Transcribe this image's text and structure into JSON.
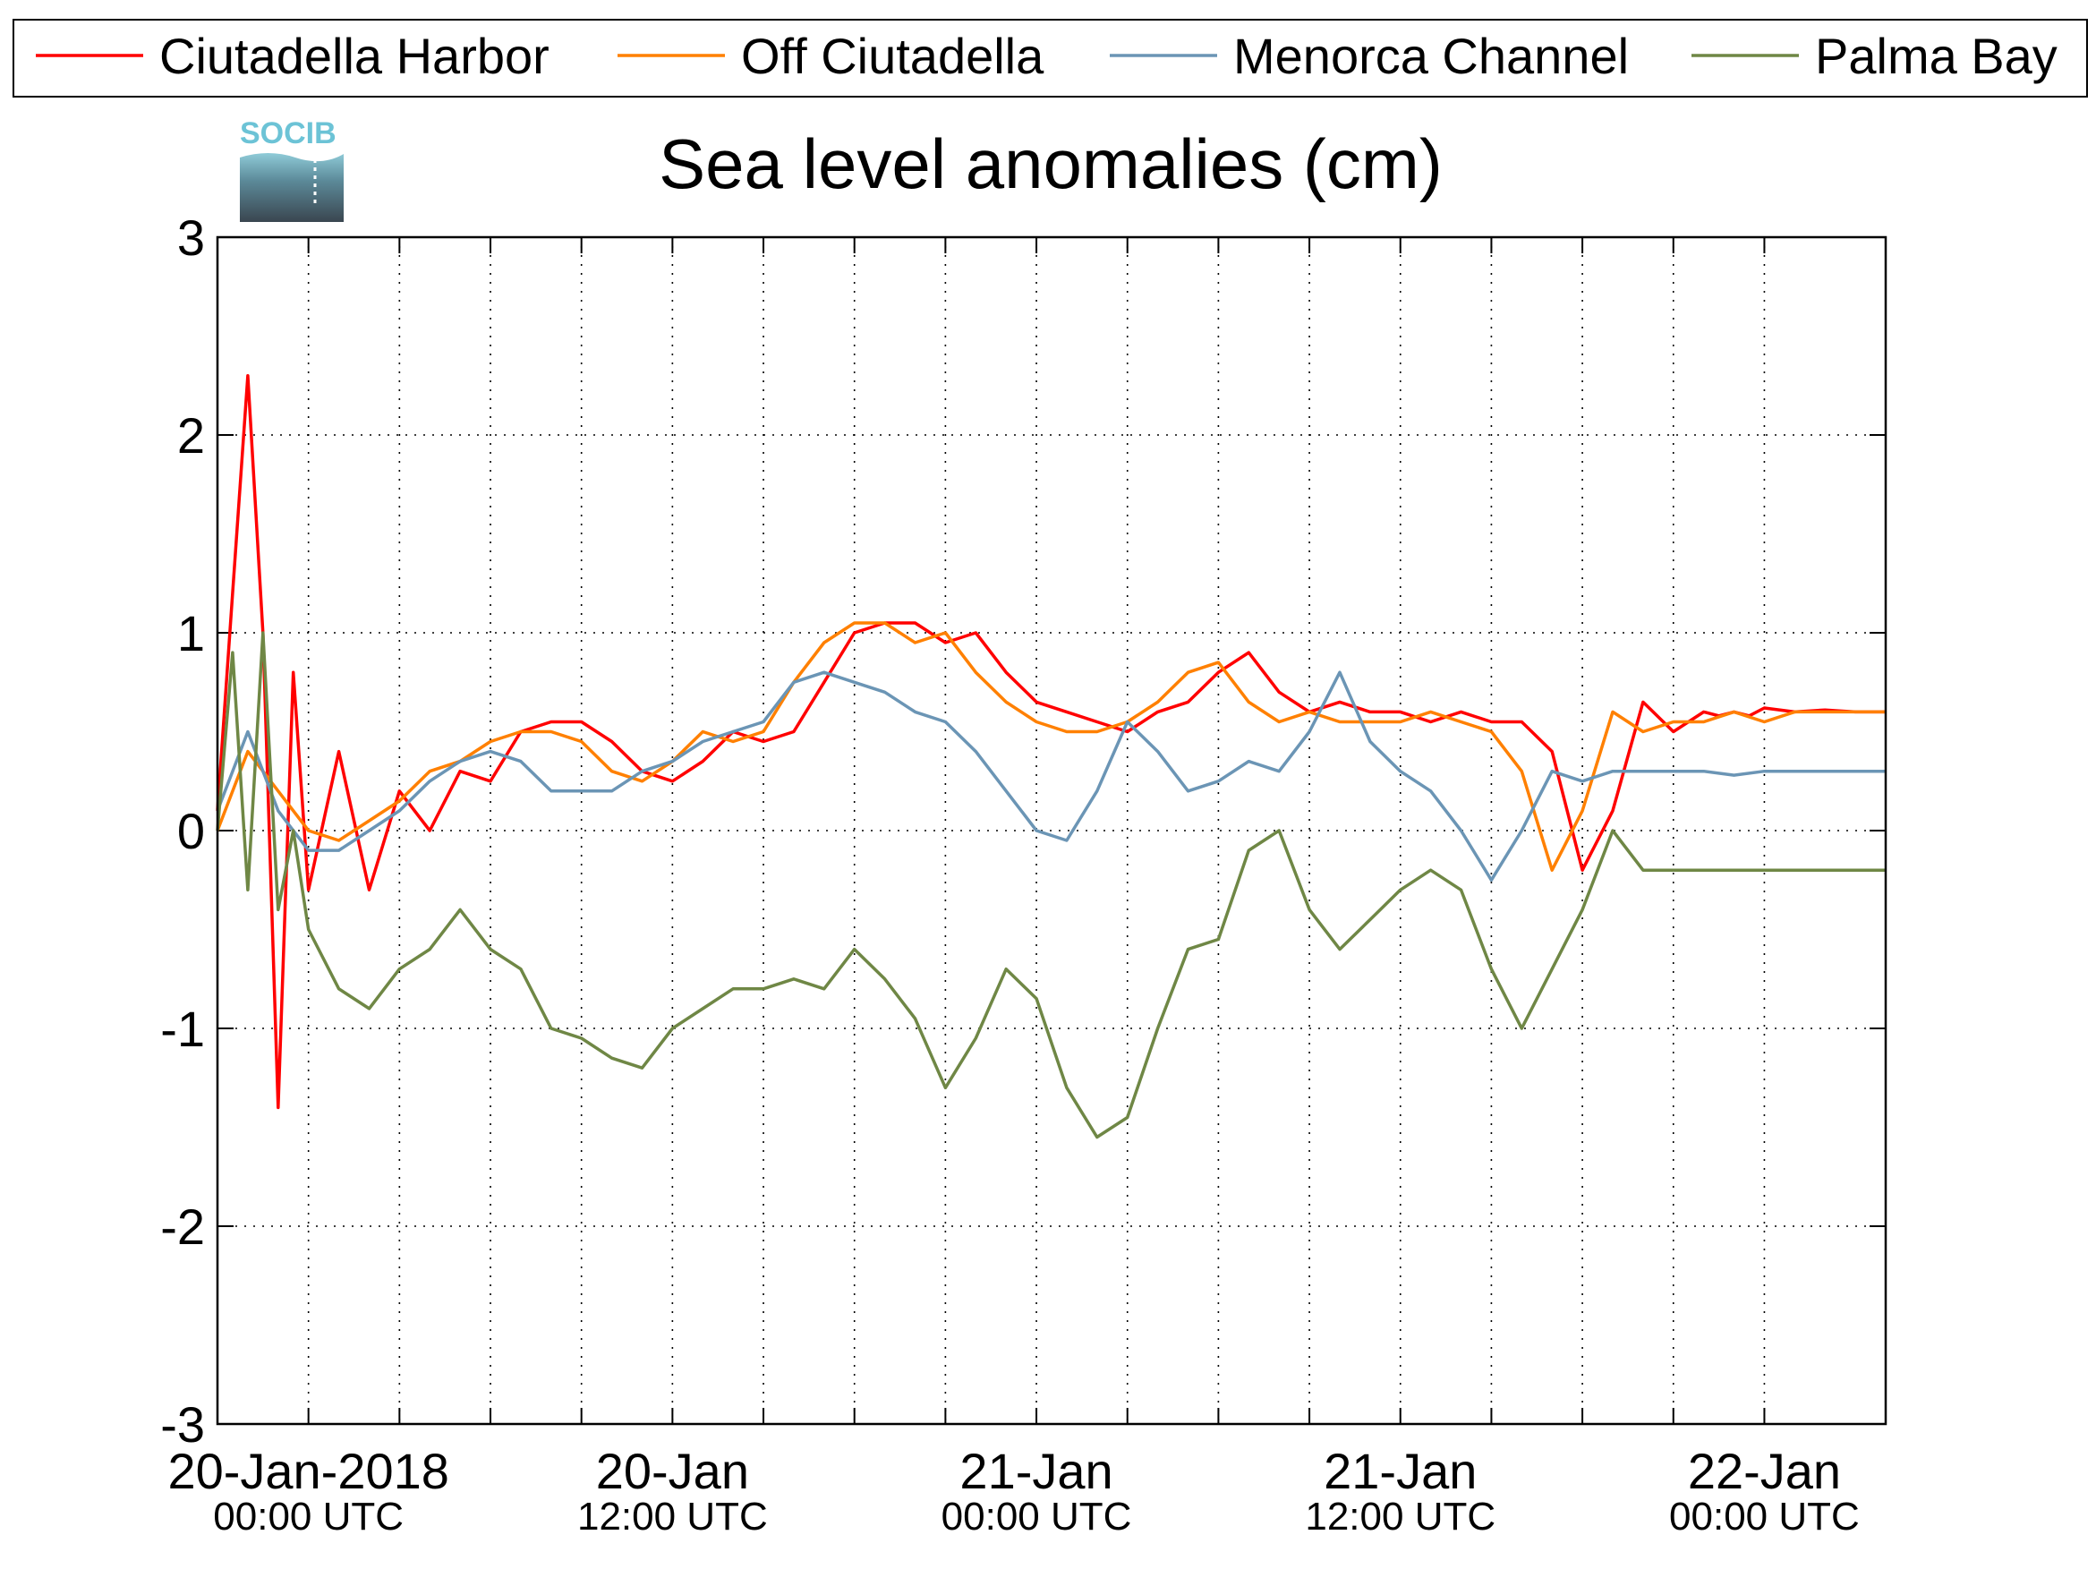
{
  "chart_data": {
    "type": "line",
    "title": "Sea level anomalies (cm)",
    "logo_text": "SOCIB",
    "xlabel": "",
    "ylabel": "",
    "ylim": [
      -3,
      3
    ],
    "yticks": [
      -3,
      -2,
      -1,
      0,
      1,
      2,
      3
    ],
    "x_unit": "hours since 20-Jan-2018 00:00 UTC",
    "xlim": [
      0,
      48
    ],
    "x_tick_labels": [
      {
        "x": 0,
        "date": "20-Jan-2018",
        "time": "00:00 UTC"
      },
      {
        "x": 12,
        "date": "20-Jan",
        "time": "12:00 UTC"
      },
      {
        "x": 24,
        "date": "21-Jan",
        "time": "00:00 UTC"
      },
      {
        "x": 36,
        "date": "21-Jan",
        "time": "12:00 UTC"
      },
      {
        "x": 48,
        "date": "22-Jan",
        "time": "00:00 UTC"
      }
    ],
    "x_minor_ticks_hours": 3,
    "grid": true,
    "legend_position": "top",
    "series": [
      {
        "name": "Ciutadella Harbor",
        "color": "#ff0000",
        "x": [
          -3,
          -2.5,
          -2,
          -1.5,
          -1,
          -0.5,
          0,
          1,
          2,
          3,
          4,
          5,
          6,
          7,
          8,
          9,
          10,
          11,
          12,
          13,
          14,
          15,
          16,
          17,
          18,
          19,
          20,
          21,
          22,
          23,
          24,
          25,
          26,
          27,
          28,
          29,
          30,
          31,
          32,
          33,
          34,
          35,
          36,
          37,
          38,
          39,
          40,
          41,
          42,
          43,
          44,
          45,
          46,
          46.5,
          47,
          47.5,
          48,
          49,
          50,
          51,
          52
        ],
        "y": [
          0.1,
          1.2,
          2.3,
          1.0,
          -1.4,
          0.8,
          -0.3,
          0.4,
          -0.3,
          0.2,
          0.0,
          0.3,
          0.25,
          0.5,
          0.55,
          0.55,
          0.45,
          0.3,
          0.25,
          0.35,
          0.5,
          0.45,
          0.5,
          0.75,
          1.0,
          1.05,
          1.05,
          0.95,
          1.0,
          0.8,
          0.65,
          0.6,
          0.55,
          0.5,
          0.6,
          0.65,
          0.8,
          0.9,
          0.7,
          0.6,
          0.65,
          0.6,
          0.6,
          0.55,
          0.6,
          0.55,
          0.55,
          0.4,
          -0.2,
          0.1,
          0.65,
          0.5,
          0.6,
          0.58,
          0.6,
          0.58,
          0.62,
          0.6,
          0.61,
          0.6,
          0.6
        ]
      },
      {
        "name": "Off Ciutadella",
        "color": "#ff8000",
        "x": [
          -3,
          -2,
          -1,
          0,
          1,
          2,
          3,
          4,
          5,
          6,
          7,
          8,
          9,
          10,
          11,
          12,
          13,
          14,
          15,
          16,
          17,
          18,
          19,
          20,
          21,
          22,
          23,
          24,
          25,
          26,
          27,
          28,
          29,
          30,
          31,
          32,
          33,
          34,
          35,
          36,
          37,
          38,
          39,
          40,
          41,
          42,
          43,
          44,
          45,
          46,
          47,
          48,
          49,
          50,
          51,
          52
        ],
        "y": [
          0.0,
          0.4,
          0.2,
          0.0,
          -0.05,
          0.05,
          0.15,
          0.3,
          0.35,
          0.45,
          0.5,
          0.5,
          0.45,
          0.3,
          0.25,
          0.35,
          0.5,
          0.45,
          0.5,
          0.75,
          0.95,
          1.05,
          1.05,
          0.95,
          1.0,
          0.8,
          0.65,
          0.55,
          0.5,
          0.5,
          0.55,
          0.65,
          0.8,
          0.85,
          0.65,
          0.55,
          0.6,
          0.55,
          0.55,
          0.55,
          0.6,
          0.55,
          0.5,
          0.3,
          -0.2,
          0.1,
          0.6,
          0.5,
          0.55,
          0.55,
          0.6,
          0.55,
          0.6,
          0.6,
          0.6,
          0.6
        ]
      },
      {
        "name": "Menorca Channel",
        "color": "#6b95b5",
        "x": [
          -3,
          -2,
          -1,
          0,
          1,
          2,
          3,
          4,
          5,
          6,
          7,
          8,
          9,
          10,
          11,
          12,
          13,
          14,
          15,
          16,
          17,
          18,
          19,
          20,
          21,
          22,
          23,
          24,
          25,
          26,
          27,
          28,
          29,
          30,
          31,
          32,
          33,
          34,
          35,
          36,
          37,
          38,
          39,
          40,
          41,
          42,
          43,
          44,
          45,
          46,
          47,
          48,
          49,
          50,
          51,
          52
        ],
        "y": [
          0.1,
          0.5,
          0.1,
          -0.1,
          -0.1,
          0.0,
          0.1,
          0.25,
          0.35,
          0.4,
          0.35,
          0.2,
          0.2,
          0.2,
          0.3,
          0.35,
          0.45,
          0.5,
          0.55,
          0.75,
          0.8,
          0.75,
          0.7,
          0.6,
          0.55,
          0.4,
          0.2,
          0.0,
          -0.05,
          0.2,
          0.55,
          0.4,
          0.2,
          0.25,
          0.35,
          0.3,
          0.5,
          0.8,
          0.45,
          0.3,
          0.2,
          0.0,
          -0.25,
          0.0,
          0.3,
          0.25,
          0.3,
          0.3,
          0.3,
          0.3,
          0.28,
          0.3,
          0.3,
          0.3,
          0.3,
          0.3
        ]
      },
      {
        "name": "Palma Bay",
        "color": "#6f8745",
        "x": [
          -3,
          -2.5,
          -2,
          -1.5,
          -1,
          -0.5,
          0,
          1,
          2,
          3,
          4,
          5,
          6,
          7,
          8,
          9,
          10,
          11,
          12,
          13,
          14,
          15,
          16,
          17,
          18,
          19,
          20,
          21,
          22,
          23,
          24,
          25,
          26,
          27,
          28,
          29,
          30,
          31,
          32,
          33,
          34,
          35,
          36,
          37,
          38,
          39,
          40,
          41,
          42,
          43,
          44,
          45,
          46,
          47,
          48,
          49,
          50,
          51,
          52
        ],
        "y": [
          0.0,
          0.9,
          -0.3,
          1.0,
          -0.4,
          0.0,
          -0.5,
          -0.8,
          -0.9,
          -0.7,
          -0.6,
          -0.4,
          -0.6,
          -0.7,
          -1.0,
          -1.05,
          -1.15,
          -1.2,
          -1.0,
          -0.9,
          -0.8,
          -0.8,
          -0.75,
          -0.8,
          -0.6,
          -0.75,
          -0.95,
          -1.3,
          -1.05,
          -0.7,
          -0.85,
          -1.3,
          -1.55,
          -1.45,
          -1.0,
          -0.6,
          -0.55,
          -0.1,
          0.0,
          -0.4,
          -0.6,
          -0.45,
          -0.3,
          -0.2,
          -0.3,
          -0.7,
          -1.0,
          -0.7,
          -0.4,
          0.0,
          -0.2,
          -0.2,
          -0.2,
          -0.2,
          -0.2,
          -0.2,
          -0.2,
          -0.2,
          -0.2
        ]
      }
    ]
  }
}
